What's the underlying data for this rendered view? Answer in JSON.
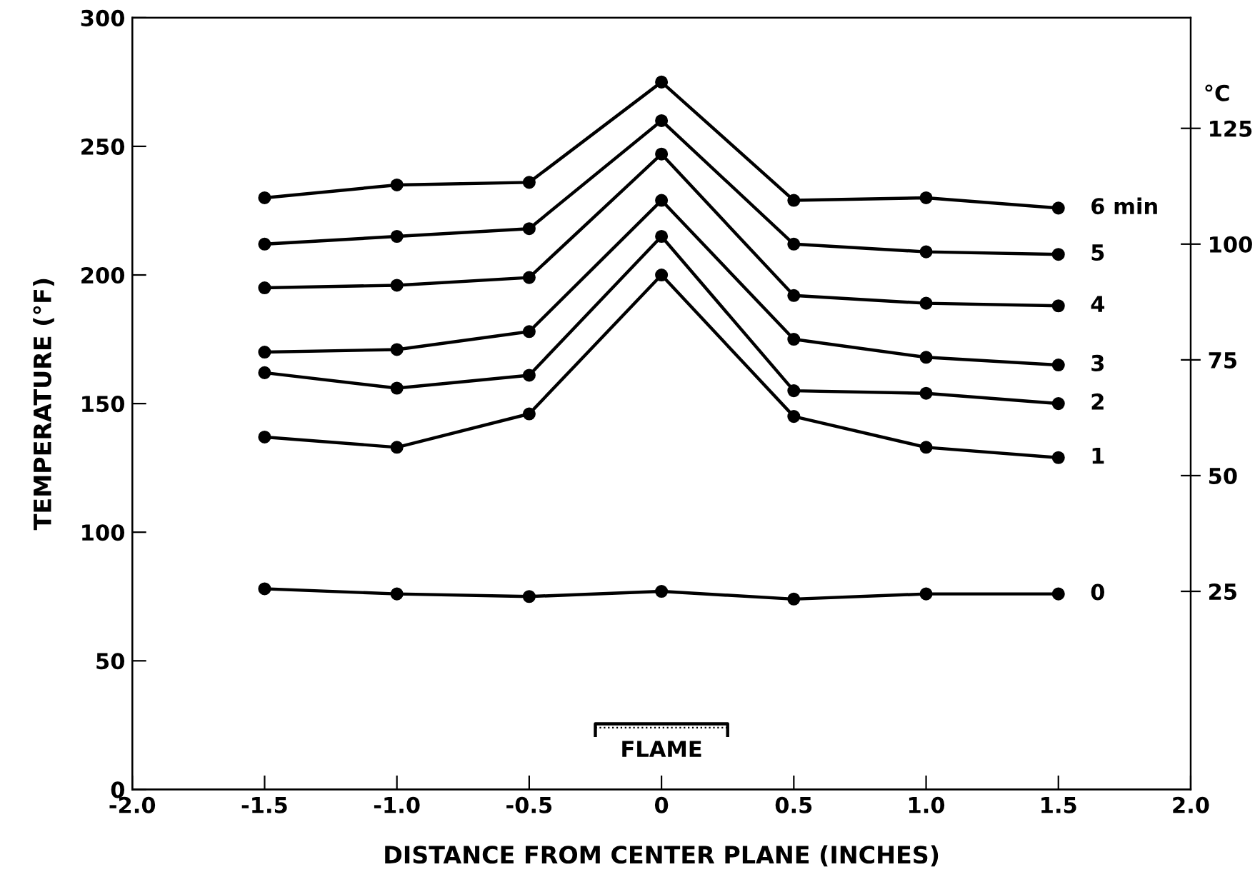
{
  "chart_data": {
    "type": "line",
    "xlabel": "DISTANCE FROM CENTER PLANE (INCHES)",
    "ylabel": "TEMPERATURE (°F)",
    "y2label": "°C",
    "x": [
      -1.5,
      -1.0,
      -0.5,
      0,
      0.5,
      1.0,
      1.5
    ],
    "series": [
      {
        "name": "6 min",
        "color": "#000000",
        "values": [
          230,
          235,
          236,
          275,
          229,
          230,
          226
        ]
      },
      {
        "name": "5",
        "color": "#000000",
        "values": [
          212,
          215,
          218,
          260,
          212,
          209,
          208
        ]
      },
      {
        "name": "4",
        "color": "#000000",
        "values": [
          195,
          196,
          199,
          247,
          192,
          189,
          188
        ]
      },
      {
        "name": "3",
        "color": "#000000",
        "values": [
          170,
          171,
          178,
          229,
          175,
          168,
          165
        ]
      },
      {
        "name": "2",
        "color": "#000000",
        "values": [
          162,
          156,
          161,
          215,
          155,
          154,
          150
        ]
      },
      {
        "name": "1",
        "color": "#000000",
        "values": [
          137,
          133,
          146,
          200,
          145,
          133,
          129
        ]
      },
      {
        "name": "0",
        "color": "#000000",
        "values": [
          78,
          76,
          75,
          77,
          74,
          76,
          76
        ]
      }
    ],
    "xlim": [
      -2.0,
      2.0
    ],
    "xticks": [
      {
        "value": -2.0,
        "label": "-2.0"
      },
      {
        "value": -1.5,
        "label": "-1.5"
      },
      {
        "value": -1.0,
        "label": "-1.0"
      },
      {
        "value": -0.5,
        "label": "-0.5"
      },
      {
        "value": 0,
        "label": "0"
      },
      {
        "value": 0.5,
        "label": "0.5"
      },
      {
        "value": 1.0,
        "label": "1.0"
      },
      {
        "value": 1.5,
        "label": "1.5"
      },
      {
        "value": 2.0,
        "label": "2.0"
      }
    ],
    "ylim": [
      0,
      300
    ],
    "yticks": [
      0,
      50,
      100,
      150,
      200,
      250,
      300
    ],
    "y2lim": [
      -17.78,
      148.89
    ],
    "y2ticks": [
      25,
      50,
      75,
      100,
      125
    ],
    "annotations": [
      "FLAME"
    ],
    "marker": "circle",
    "line_style": "solid",
    "grid": false,
    "legend": false
  }
}
